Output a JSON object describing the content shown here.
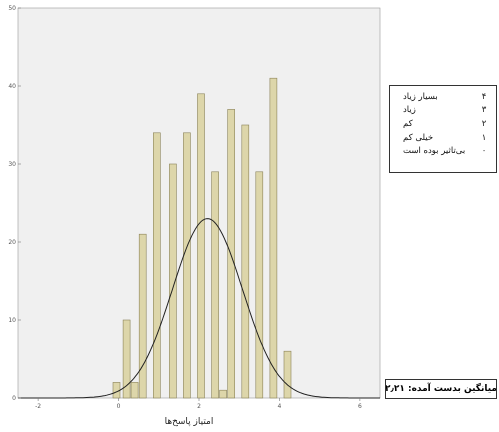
{
  "chart_data": {
    "type": "bar",
    "title": "",
    "xlabel": "امتیاز پاسخ‌ها",
    "ylabel": "",
    "xlim": [
      -2.5,
      6.5
    ],
    "ylim": [
      0,
      50
    ],
    "x_ticks": [
      "-2",
      "0",
      "2",
      "4",
      "6"
    ],
    "x_tick_values": [
      -2,
      0,
      2,
      4,
      6
    ],
    "y_ticks": [
      "0",
      "10",
      "20",
      "30",
      "40",
      "50"
    ],
    "y_tick_values": [
      0,
      10,
      20,
      30,
      40,
      50
    ],
    "bar_color": "#ddd6aa",
    "bar_edge_color": "#8a8258",
    "plot_bg": "#f0f0f0",
    "grid": false,
    "bars": [
      {
        "x": -0.05,
        "value": 2
      },
      {
        "x": 0.2,
        "value": 10
      },
      {
        "x": 0.4,
        "value": 2
      },
      {
        "x": 0.6,
        "value": 21
      },
      {
        "x": 0.95,
        "value": 34
      },
      {
        "x": 1.35,
        "value": 30
      },
      {
        "x": 1.7,
        "value": 34
      },
      {
        "x": 2.05,
        "value": 39
      },
      {
        "x": 2.4,
        "value": 29
      },
      {
        "x": 2.6,
        "value": 1
      },
      {
        "x": 2.8,
        "value": 37
      },
      {
        "x": 3.15,
        "value": 35
      },
      {
        "x": 3.5,
        "value": 29
      },
      {
        "x": 3.85,
        "value": 41
      },
      {
        "x": 4.2,
        "value": 6
      }
    ],
    "normal_curve": {
      "mean": 2.21,
      "sd": 0.87,
      "peak": 23,
      "color": "#222222"
    }
  },
  "legend": {
    "items": [
      {
        "label": "بسیار زیاد",
        "code": "۴"
      },
      {
        "label": "زیاد",
        "code": "۳"
      },
      {
        "label": "کم",
        "code": "۲"
      },
      {
        "label": "خیلی کم",
        "code": "۱"
      },
      {
        "label": "بی‌تاثیر بوده است",
        "code": "۰"
      }
    ]
  },
  "mean_label": "میانگین بدست آمده: ۲٫۲۱"
}
